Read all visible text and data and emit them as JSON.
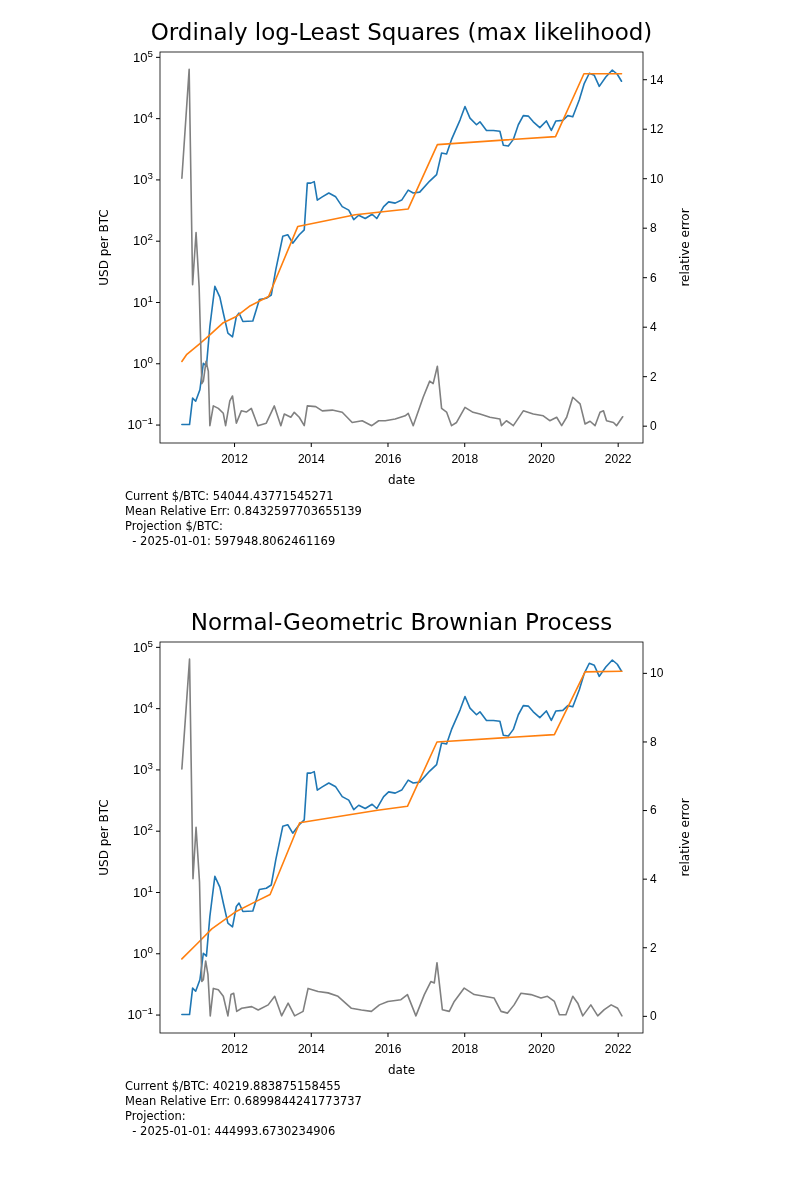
{
  "chart_data": [
    {
      "type": "line",
      "title": "Ordinaly log-Least Squares (max likelihood)",
      "xlabel": "date",
      "ylabel": "USD per BTC",
      "y2label": "relative error",
      "log": "y",
      "grid": false,
      "xlim": [
        2010.07,
        2022.66
      ],
      "xticks": [
        2012,
        2014,
        2016,
        2018,
        2020,
        2022
      ],
      "ylim": [
        0.05,
        120000
      ],
      "yticks": [
        {
          "value": 0.1,
          "label": "10$^{−1}$"
        },
        {
          "value": 1,
          "label": "10$^{0}$"
        },
        {
          "value": 10,
          "label": "10$^{1}$"
        },
        {
          "value": 100,
          "label": "10$^{2}$"
        },
        {
          "value": 1000,
          "label": "10$^{3}$"
        },
        {
          "value": 10000,
          "label": "10$^{4}$"
        },
        {
          "value": 100000,
          "label": "10$^{5}$"
        }
      ],
      "y2lim": [
        -0.7,
        15.1
      ],
      "y2ticks": [
        0,
        2,
        4,
        6,
        8,
        10,
        12,
        14
      ],
      "series": [
        {
          "color": "#1f77b4",
          "x": [
            2010.64,
            2010.84,
            2010.92,
            2011.0,
            2011.11,
            2011.2,
            2011.28,
            2011.37,
            2011.5,
            2011.63,
            2011.72,
            2011.84,
            2011.96,
            2012.06,
            2012.13,
            2012.23,
            2012.49,
            2012.66,
            2012.84,
            2012.97,
            2013.09,
            2013.27,
            2013.4,
            2013.53,
            2013.7,
            2013.83,
            2013.91,
            2014.0,
            2014.09,
            2014.17,
            2014.3,
            2014.47,
            2014.65,
            2014.82,
            2014.99,
            2015.12,
            2015.25,
            2015.42,
            2015.6,
            2015.72,
            2015.9,
            2016.03,
            2016.2,
            2016.37,
            2016.54,
            2016.67,
            2016.84,
            2017.1,
            2017.28,
            2017.41,
            2017.54,
            2017.67,
            2017.89,
            2018.02,
            2018.15,
            2018.32,
            2018.41,
            2018.58,
            2018.76,
            2018.93,
            2019.02,
            2019.15,
            2019.28,
            2019.41,
            2019.54,
            2019.67,
            2019.8,
            2019.97,
            2020.14,
            2020.27,
            2020.39,
            2020.57,
            2020.7,
            2020.83,
            2021.0,
            2021.13,
            2021.26,
            2021.39,
            2021.52,
            2021.69,
            2021.86,
            2021.99,
            2022.1
          ],
          "values": [
            0.1,
            0.1,
            0.27,
            0.24,
            0.37,
            1.0,
            0.9,
            4,
            18,
            12,
            6.6,
            3.1,
            2.7,
            5.8,
            6.6,
            4.8,
            4.9,
            11,
            11.5,
            13,
            34,
            118,
            125,
            91,
            125,
            150,
            870,
            870,
            920,
            460,
            520,
            600,
            520,
            360,
            315,
            220,
            260,
            230,
            270,
            230,
            360,
            430,
            410,
            460,
            670,
            600,
            620,
            940,
            1200,
            2700,
            2600,
            4500,
            9300,
            15500,
            10000,
            7800,
            8700,
            6300,
            6300,
            6100,
            3600,
            3500,
            4500,
            7800,
            11000,
            10800,
            8700,
            7000,
            9000,
            6300,
            9000,
            9200,
            11000,
            10500,
            20000,
            37000,
            54000,
            50000,
            33000,
            47000,
            61000,
            52000,
            40000
          ]
        },
        {
          "color": "#ff7f0e",
          "x": [
            2010.64,
            2010.77,
            2011.11,
            2011.37,
            2011.72,
            2012.06,
            2012.4,
            2012.9,
            2013.66,
            2015.16,
            2016.54,
            2017.3,
            2020.38,
            2021.12,
            2022.1
          ],
          "values": [
            1.07,
            1.4,
            2.1,
            2.9,
            4.6,
            5.8,
            8.5,
            12.3,
            170,
            265,
            330,
            3700,
            5000,
            53000,
            53000
          ]
        },
        {
          "color": "#808080",
          "axis": "y2",
          "x": [
            2010.64,
            2010.83,
            2010.92,
            2011.01,
            2011.09,
            2011.16,
            2011.2,
            2011.27,
            2011.33,
            2011.37,
            2011.46,
            2011.59,
            2011.72,
            2011.78,
            2011.89,
            2011.96,
            2012.06,
            2012.19,
            2012.32,
            2012.45,
            2012.62,
            2012.84,
            2013.05,
            2013.22,
            2013.31,
            2013.48,
            2013.57,
            2013.7,
            2013.83,
            2013.91,
            2014.13,
            2014.3,
            2014.56,
            2014.82,
            2015.08,
            2015.34,
            2015.59,
            2015.77,
            2015.94,
            2016.2,
            2016.46,
            2016.54,
            2016.67,
            2016.93,
            2017.1,
            2017.19,
            2017.3,
            2017.41,
            2017.54,
            2017.67,
            2017.8,
            2018.02,
            2018.23,
            2018.41,
            2018.67,
            2018.93,
            2018.97,
            2019.1,
            2019.28,
            2019.54,
            2019.8,
            2020.06,
            2020.23,
            2020.41,
            2020.54,
            2020.67,
            2020.83,
            2021.02,
            2021.15,
            2021.28,
            2021.41,
            2021.54,
            2021.63,
            2021.71,
            2021.89,
            2021.97,
            2022.13
          ],
          "values": [
            10.0,
            14.4,
            5.7,
            7.8,
            5.6,
            1.7,
            1.8,
            2.6,
            2.2,
            0,
            0.8,
            0.7,
            0.5,
            0,
            1.0,
            1.2,
            0.1,
            0.6,
            0.55,
            0.7,
            0,
            0.1,
            0.8,
            0,
            0.47,
            0.34,
            0.54,
            0.34,
            0,
            0.8,
            0.77,
            0.6,
            0.63,
            0.54,
            0.13,
            0.2,
            0,
            0.2,
            0.2,
            0.27,
            0.4,
            0.5,
            0,
            1.15,
            1.8,
            1.7,
            2.4,
            0.7,
            0.55,
            0,
            0.13,
            0.74,
            0.54,
            0.47,
            0.34,
            0.27,
            0,
            0.2,
            0,
            0.6,
            0.47,
            0.4,
            0.2,
            0.34,
            0,
            0.34,
            1.15,
            0.88,
            0.07,
            0.18,
            0,
            0.54,
            0.6,
            0.2,
            0.13,
            0,
            0.36
          ]
        }
      ],
      "annotations": [
        "Current $/BTC: 54044.43771545271",
        "Mean Relative Err: 0.8432597703655139",
        "Projection $/BTC:",
        "  - 2025-01-01: 597948.8062461169"
      ]
    },
    {
      "type": "line",
      "title": "Normal-Geometric Brownian Process",
      "xlabel": "date",
      "ylabel": "USD per BTC",
      "y2label": "relative error",
      "log": "y",
      "grid": false,
      "xlim": [
        2010.07,
        2022.66
      ],
      "xticks": [
        2012,
        2014,
        2016,
        2018,
        2020,
        2022
      ],
      "ylim": [
        0.05,
        120000
      ],
      "yticks": [
        {
          "value": 0.1,
          "label": "10$^{−1}$"
        },
        {
          "value": 1,
          "label": "10$^{0}$"
        },
        {
          "value": 10,
          "label": "10$^{1}$"
        },
        {
          "value": 100,
          "label": "10$^{2}$"
        },
        {
          "value": 1000,
          "label": "10$^{3}$"
        },
        {
          "value": 10000,
          "label": "10$^{4}$"
        },
        {
          "value": 100000,
          "label": "10$^{5}$"
        }
      ],
      "y2lim": [
        -0.5,
        10.9
      ],
      "y2ticks": [
        0,
        2,
        4,
        6,
        8,
        10
      ],
      "series": [
        {
          "color": "#1f77b4",
          "x": [
            2010.64,
            2010.84,
            2010.92,
            2011.0,
            2011.11,
            2011.2,
            2011.28,
            2011.37,
            2011.5,
            2011.63,
            2011.72,
            2011.84,
            2011.96,
            2012.06,
            2012.13,
            2012.23,
            2012.49,
            2012.66,
            2012.84,
            2012.97,
            2013.09,
            2013.27,
            2013.4,
            2013.53,
            2013.7,
            2013.83,
            2013.91,
            2014.0,
            2014.09,
            2014.17,
            2014.3,
            2014.47,
            2014.65,
            2014.82,
            2014.99,
            2015.12,
            2015.25,
            2015.42,
            2015.6,
            2015.72,
            2015.9,
            2016.03,
            2016.2,
            2016.37,
            2016.54,
            2016.67,
            2016.84,
            2017.1,
            2017.28,
            2017.41,
            2017.54,
            2017.67,
            2017.89,
            2018.02,
            2018.15,
            2018.32,
            2018.41,
            2018.58,
            2018.76,
            2018.93,
            2019.02,
            2019.15,
            2019.28,
            2019.41,
            2019.54,
            2019.67,
            2019.8,
            2019.97,
            2020.14,
            2020.27,
            2020.39,
            2020.57,
            2020.7,
            2020.83,
            2021.0,
            2021.13,
            2021.26,
            2021.39,
            2021.52,
            2021.69,
            2021.86,
            2021.99,
            2022.1
          ],
          "values": [
            0.1,
            0.1,
            0.27,
            0.24,
            0.37,
            1.0,
            0.9,
            4,
            18,
            12,
            6.6,
            3.1,
            2.7,
            5.8,
            6.6,
            4.8,
            4.9,
            11,
            11.5,
            13,
            34,
            118,
            125,
            91,
            125,
            150,
            870,
            870,
            920,
            460,
            520,
            600,
            520,
            360,
            315,
            220,
            260,
            230,
            270,
            230,
            360,
            430,
            410,
            460,
            670,
            600,
            620,
            940,
            1200,
            2700,
            2600,
            4500,
            9300,
            15500,
            10000,
            7800,
            8700,
            6300,
            6300,
            6100,
            3600,
            3500,
            4500,
            7800,
            11000,
            10800,
            8700,
            7000,
            9000,
            6300,
            9000,
            9200,
            11000,
            10500,
            20000,
            37000,
            54000,
            50000,
            33000,
            47000,
            61000,
            52000,
            40000
          ]
        },
        {
          "color": "#ff7f0e",
          "x": [
            2010.64,
            2011.07,
            2011.42,
            2012.03,
            2012.55,
            2012.94,
            2013.71,
            2015.74,
            2016.52,
            2017.29,
            2020.35,
            2021.15,
            2022.11
          ],
          "values": [
            0.81,
            1.5,
            2.5,
            4.7,
            6.9,
            9.1,
            135,
            215,
            250,
            2800,
            3700,
            39000,
            40000
          ]
        },
        {
          "color": "#808080",
          "axis": "y2",
          "x": [
            2010.64,
            2010.84,
            2010.93,
            2011.01,
            2011.1,
            2011.16,
            2011.2,
            2011.26,
            2011.32,
            2011.38,
            2011.46,
            2011.59,
            2011.72,
            2011.84,
            2011.92,
            2011.99,
            2012.07,
            2012.2,
            2012.46,
            2012.63,
            2012.89,
            2013.06,
            2013.24,
            2013.41,
            2013.58,
            2013.8,
            2013.93,
            2014.19,
            2014.45,
            2014.71,
            2015.06,
            2015.32,
            2015.58,
            2015.79,
            2016.01,
            2016.35,
            2016.52,
            2016.74,
            2016.96,
            2017.13,
            2017.22,
            2017.29,
            2017.43,
            2017.61,
            2017.74,
            2018.0,
            2018.26,
            2018.52,
            2018.78,
            2018.96,
            2019.13,
            2019.3,
            2019.48,
            2019.74,
            2020.0,
            2020.17,
            2020.35,
            2020.48,
            2020.65,
            2020.83,
            2020.96,
            2021.09,
            2021.3,
            2021.48,
            2021.65,
            2021.83,
            2022.0,
            2022.11
          ],
          "values": [
            7.2,
            10.4,
            4.0,
            5.5,
            3.9,
            1.0,
            1.05,
            1.6,
            1.2,
            0,
            0.8,
            0.76,
            0.57,
            0,
            0.62,
            0.66,
            0.13,
            0.22,
            0.27,
            0.17,
            0.32,
            0.57,
            0,
            0.37,
            0,
            0.13,
            0.8,
            0.71,
            0.67,
            0.57,
            0.22,
            0.17,
            0.13,
            0.32,
            0.42,
            0.47,
            0.62,
            0,
            0.62,
            1.0,
            0.96,
            1.55,
            0.18,
            0.13,
            0.42,
            0.81,
            0.62,
            0.57,
            0.52,
            0.13,
            0.08,
            0.32,
            0.66,
            0.62,
            0.52,
            0.57,
            0.42,
            0.03,
            0.03,
            0.57,
            0.37,
            0,
            0.32,
            0,
            0.18,
            0.32,
            0.22,
            0
          ]
        }
      ],
      "annotations": [
        "Current $/BTC: 40219.883875158455",
        "Mean Relative Err: 0.6899844241773737",
        "Projection:",
        "  - 2025-01-01: 444993.6730234906"
      ]
    }
  ]
}
